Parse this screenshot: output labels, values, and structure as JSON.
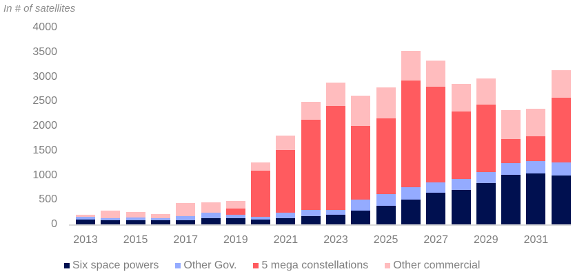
{
  "chart_data": {
    "type": "bar",
    "stacked": true,
    "title": "",
    "ylabel": "In # of satellites",
    "xlabel": "",
    "ylim": [
      0,
      4000
    ],
    "yticks": [
      0,
      500,
      1000,
      1500,
      2000,
      2500,
      3000,
      3500,
      4000
    ],
    "xtick_labels": [
      "2013",
      "2015",
      "2017",
      "2019",
      "2021",
      "2023",
      "2025",
      "2027",
      "2029",
      "2031"
    ],
    "categories": [
      "2013",
      "2014",
      "2015",
      "2016",
      "2017",
      "2018",
      "2019",
      "2020",
      "2021",
      "2022",
      "2023",
      "2024",
      "2025",
      "2026",
      "2027",
      "2028",
      "2029",
      "2030",
      "2031",
      "2032"
    ],
    "series": [
      {
        "name": "Six space powers",
        "color": "#001050",
        "values": [
          100,
          80,
          90,
          80,
          80,
          130,
          120,
          100,
          130,
          170,
          200,
          280,
          380,
          510,
          640,
          700,
          840,
          1010,
          1040,
          990
        ]
      },
      {
        "name": "Other Gov.",
        "color": "#94abff",
        "values": [
          50,
          50,
          55,
          40,
          90,
          110,
          80,
          50,
          110,
          130,
          100,
          230,
          230,
          250,
          210,
          220,
          220,
          240,
          240,
          270
        ]
      },
      {
        "name": "5 mega constellations",
        "color": "#ff5b5f",
        "values": [
          0,
          0,
          0,
          0,
          0,
          0,
          120,
          940,
          1270,
          1820,
          2100,
          1490,
          1550,
          2160,
          1950,
          1370,
          1370,
          490,
          510,
          1320
        ]
      },
      {
        "name": "Other commercial",
        "color": "#ffbcbe",
        "values": [
          40,
          150,
          105,
          90,
          270,
          210,
          150,
          170,
          300,
          370,
          480,
          610,
          630,
          600,
          530,
          560,
          530,
          580,
          560,
          560
        ]
      }
    ],
    "legend_position": "bottom",
    "grid": false
  },
  "labels": {
    "ylabel": "In # of satellites",
    "legend": [
      "Six space powers",
      "Other Gov.",
      "5 mega constellations",
      "Other commercial"
    ]
  }
}
